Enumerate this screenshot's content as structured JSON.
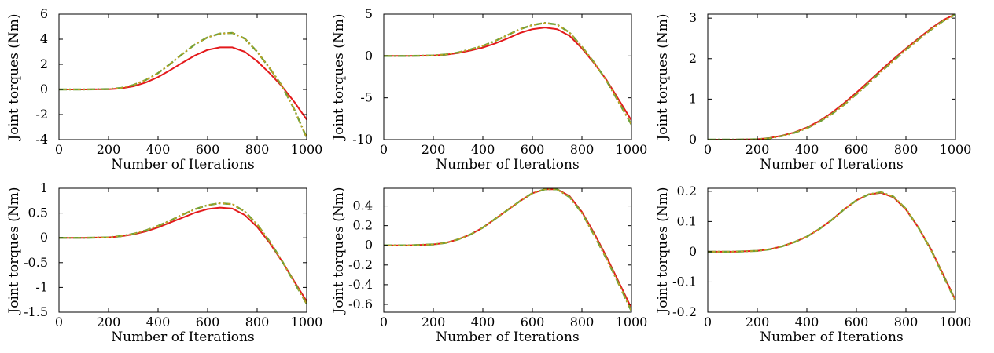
{
  "colors": {
    "series_a": "#e41a1c",
    "series_b": "#6da037",
    "series_c": "#d4a020"
  },
  "chart_data": [
    {
      "type": "line",
      "xlabel": "Number of Iterations",
      "ylabel": "Joint torques (Nm)",
      "xlim": [
        0,
        1000
      ],
      "ylim": [
        -4,
        6
      ],
      "xticks": [
        "0",
        "200",
        "400",
        "600",
        "800",
        "1000"
      ],
      "yticks": [
        "-4",
        "-2",
        "0",
        "2",
        "4",
        "6"
      ],
      "series": [
        {
          "x": [
            0,
            100,
            200,
            250,
            300,
            350,
            400,
            450,
            500,
            550,
            600,
            650,
            700,
            750,
            800,
            850,
            900,
            950,
            1000
          ],
          "values": [
            0,
            0,
            0.02,
            0.08,
            0.25,
            0.55,
            0.98,
            1.55,
            2.15,
            2.72,
            3.15,
            3.35,
            3.35,
            3.0,
            2.25,
            1.3,
            0.25,
            -1.0,
            -2.4
          ]
        },
        {
          "x": [
            0,
            100,
            200,
            250,
            300,
            350,
            400,
            450,
            500,
            550,
            600,
            650,
            700,
            750,
            800,
            850,
            900,
            950,
            1000
          ],
          "values": [
            0,
            0,
            0.03,
            0.12,
            0.35,
            0.75,
            1.3,
            2.05,
            2.85,
            3.6,
            4.15,
            4.45,
            4.5,
            4.05,
            3.0,
            1.7,
            0.3,
            -1.6,
            -3.85
          ]
        },
        {
          "x": [
            0,
            100,
            200,
            250,
            300,
            350,
            400,
            450,
            500,
            550,
            600,
            650,
            700,
            750,
            800,
            850,
            900,
            950,
            1000
          ],
          "values": [
            0,
            0,
            0.03,
            0.12,
            0.35,
            0.75,
            1.3,
            2.05,
            2.85,
            3.6,
            4.15,
            4.45,
            4.5,
            4.05,
            3.0,
            1.7,
            0.3,
            -1.6,
            -3.85
          ]
        }
      ]
    },
    {
      "type": "line",
      "xlabel": "Number of Iterations",
      "ylabel": "Joint torques (Nm)",
      "xlim": [
        0,
        1000
      ],
      "ylim": [
        -10,
        5
      ],
      "xticks": [
        "0",
        "200",
        "400",
        "600",
        "800",
        "1000"
      ],
      "yticks": [
        "-10",
        "-5",
        "0",
        "5"
      ],
      "series": [
        {
          "x": [
            0,
            100,
            200,
            250,
            300,
            350,
            400,
            450,
            500,
            550,
            600,
            650,
            700,
            750,
            800,
            850,
            900,
            950,
            1000
          ],
          "values": [
            0,
            0,
            0.05,
            0.15,
            0.35,
            0.65,
            1.0,
            1.5,
            2.1,
            2.75,
            3.2,
            3.4,
            3.2,
            2.4,
            0.9,
            -0.9,
            -2.9,
            -5.3,
            -7.7
          ]
        },
        {
          "x": [
            0,
            100,
            200,
            250,
            300,
            350,
            400,
            450,
            500,
            550,
            600,
            650,
            700,
            750,
            800,
            850,
            900,
            950,
            1000
          ],
          "values": [
            0,
            0,
            0.06,
            0.18,
            0.42,
            0.78,
            1.2,
            1.8,
            2.5,
            3.2,
            3.7,
            3.95,
            3.75,
            2.8,
            1.1,
            -0.8,
            -3.0,
            -5.6,
            -8.2
          ]
        },
        {
          "x": [
            0,
            100,
            200,
            250,
            300,
            350,
            400,
            450,
            500,
            550,
            600,
            650,
            700,
            750,
            800,
            850,
            900,
            950,
            1000
          ],
          "values": [
            0,
            0,
            0.06,
            0.18,
            0.42,
            0.78,
            1.2,
            1.8,
            2.5,
            3.2,
            3.7,
            3.95,
            3.75,
            2.8,
            1.1,
            -0.8,
            -3.0,
            -5.6,
            -8.2
          ]
        }
      ]
    },
    {
      "type": "line",
      "xlabel": "Number of Iterations",
      "ylabel": "Joint torques (Nm)",
      "xlim": [
        0,
        1000
      ],
      "ylim": [
        0,
        3.1
      ],
      "xticks": [
        "0",
        "200",
        "400",
        "600",
        "800",
        "1000"
      ],
      "yticks": [
        "0",
        "1",
        "2",
        "3"
      ],
      "series": [
        {
          "x": [
            0,
            100,
            200,
            250,
            300,
            350,
            400,
            450,
            500,
            550,
            600,
            650,
            700,
            750,
            800,
            850,
            900,
            950,
            1000
          ],
          "values": [
            0,
            0,
            0.01,
            0.04,
            0.1,
            0.18,
            0.3,
            0.46,
            0.66,
            0.9,
            1.16,
            1.44,
            1.72,
            1.99,
            2.25,
            2.5,
            2.74,
            2.95,
            3.1
          ]
        },
        {
          "x": [
            0,
            100,
            200,
            250,
            300,
            350,
            400,
            450,
            500,
            550,
            600,
            650,
            700,
            750,
            800,
            850,
            900,
            950,
            1000
          ],
          "values": [
            0,
            0,
            0.01,
            0.035,
            0.09,
            0.17,
            0.28,
            0.44,
            0.63,
            0.86,
            1.12,
            1.4,
            1.68,
            1.95,
            2.22,
            2.47,
            2.71,
            2.93,
            3.09
          ]
        },
        {
          "x": [
            0,
            100,
            200,
            250,
            300,
            350,
            400,
            450,
            500,
            550,
            600,
            650,
            700,
            750,
            800,
            850,
            900,
            950,
            1000
          ],
          "values": [
            0,
            0,
            0.01,
            0.035,
            0.09,
            0.17,
            0.28,
            0.44,
            0.63,
            0.86,
            1.12,
            1.4,
            1.68,
            1.95,
            2.22,
            2.47,
            2.71,
            2.93,
            3.09
          ]
        }
      ]
    },
    {
      "type": "line",
      "xlabel": "Number of Iterations",
      "ylabel": "Joint torques (Nm)",
      "xlim": [
        0,
        1000
      ],
      "ylim": [
        -1.5,
        1
      ],
      "xticks": [
        "0",
        "200",
        "400",
        "600",
        "800",
        "1000"
      ],
      "yticks": [
        "-1.5",
        "-1",
        "-0.5",
        "0",
        "0.5",
        "1"
      ],
      "series": [
        {
          "x": [
            0,
            100,
            200,
            250,
            300,
            350,
            400,
            450,
            500,
            550,
            600,
            650,
            700,
            750,
            800,
            850,
            900,
            950,
            1000
          ],
          "values": [
            0,
            0,
            0.01,
            0.03,
            0.07,
            0.13,
            0.21,
            0.31,
            0.41,
            0.51,
            0.58,
            0.61,
            0.59,
            0.46,
            0.22,
            -0.1,
            -0.47,
            -0.88,
            -1.28
          ]
        },
        {
          "x": [
            0,
            100,
            200,
            250,
            300,
            350,
            400,
            450,
            500,
            550,
            600,
            650,
            700,
            750,
            800,
            850,
            900,
            950,
            1000
          ],
          "values": [
            0,
            0,
            0.01,
            0.035,
            0.08,
            0.15,
            0.24,
            0.35,
            0.47,
            0.58,
            0.66,
            0.7,
            0.68,
            0.53,
            0.27,
            -0.07,
            -0.46,
            -0.9,
            -1.33
          ]
        },
        {
          "x": [
            0,
            100,
            200,
            250,
            300,
            350,
            400,
            450,
            500,
            550,
            600,
            650,
            700,
            750,
            800,
            850,
            900,
            950,
            1000
          ],
          "values": [
            0,
            0,
            0.01,
            0.035,
            0.08,
            0.15,
            0.24,
            0.35,
            0.47,
            0.58,
            0.66,
            0.7,
            0.68,
            0.53,
            0.27,
            -0.07,
            -0.46,
            -0.9,
            -1.33
          ]
        }
      ]
    },
    {
      "type": "line",
      "xlabel": "Number of Iterations",
      "ylabel": "Joint torques (Nm)",
      "xlim": [
        0,
        1000
      ],
      "ylim": [
        -0.68,
        0.58
      ],
      "xticks": [
        "0",
        "200",
        "400",
        "600",
        "800",
        "1000"
      ],
      "yticks": [
        "-0.6",
        "-0.4",
        "-0.2",
        "0",
        "0.2",
        "0.4"
      ],
      "series": [
        {
          "x": [
            0,
            100,
            200,
            250,
            300,
            350,
            400,
            450,
            500,
            550,
            600,
            650,
            700,
            750,
            800,
            850,
            900,
            950,
            1000
          ],
          "values": [
            0,
            0,
            0.01,
            0.025,
            0.06,
            0.11,
            0.18,
            0.27,
            0.36,
            0.45,
            0.53,
            0.57,
            0.57,
            0.5,
            0.34,
            0.12,
            -0.12,
            -0.38,
            -0.64
          ]
        },
        {
          "x": [
            0,
            100,
            200,
            250,
            300,
            350,
            400,
            450,
            500,
            550,
            600,
            650,
            700,
            750,
            800,
            850,
            900,
            950,
            1000
          ],
          "values": [
            0,
            0,
            0.01,
            0.025,
            0.06,
            0.11,
            0.18,
            0.27,
            0.36,
            0.45,
            0.53,
            0.57,
            0.57,
            0.49,
            0.33,
            0.1,
            -0.14,
            -0.4,
            -0.67
          ]
        },
        {
          "x": [
            0,
            100,
            200,
            250,
            300,
            350,
            400,
            450,
            500,
            550,
            600,
            650,
            700,
            750,
            800,
            850,
            900,
            950,
            1000
          ],
          "values": [
            0,
            0,
            0.01,
            0.025,
            0.06,
            0.11,
            0.18,
            0.27,
            0.36,
            0.45,
            0.53,
            0.57,
            0.57,
            0.49,
            0.33,
            0.1,
            -0.14,
            -0.4,
            -0.67
          ]
        }
      ]
    },
    {
      "type": "line",
      "xlabel": "Number of Iterations",
      "ylabel": "Joint torques (Nm)",
      "xlim": [
        0,
        1000
      ],
      "ylim": [
        -0.2,
        0.21
      ],
      "xticks": [
        "0",
        "200",
        "400",
        "600",
        "800",
        "1000"
      ],
      "yticks": [
        "-0.2",
        "-0.1",
        "0",
        "0.1",
        "0.2"
      ],
      "series": [
        {
          "x": [
            0,
            100,
            200,
            250,
            300,
            350,
            400,
            450,
            500,
            550,
            600,
            650,
            700,
            750,
            800,
            850,
            900,
            950,
            1000
          ],
          "values": [
            0,
            0,
            0.003,
            0.008,
            0.018,
            0.032,
            0.05,
            0.075,
            0.105,
            0.14,
            0.17,
            0.19,
            0.195,
            0.18,
            0.14,
            0.08,
            0.01,
            -0.075,
            -0.16
          ]
        },
        {
          "x": [
            0,
            100,
            200,
            250,
            300,
            350,
            400,
            450,
            500,
            550,
            600,
            650,
            700,
            750,
            800,
            850,
            900,
            950,
            1000
          ],
          "values": [
            0,
            0,
            0.003,
            0.008,
            0.018,
            0.032,
            0.05,
            0.075,
            0.105,
            0.14,
            0.17,
            0.19,
            0.197,
            0.182,
            0.142,
            0.08,
            0.008,
            -0.078,
            -0.163
          ]
        },
        {
          "x": [
            0,
            100,
            200,
            250,
            300,
            350,
            400,
            450,
            500,
            550,
            600,
            650,
            700,
            750,
            800,
            850,
            900,
            950,
            1000
          ],
          "values": [
            0,
            0,
            0.003,
            0.008,
            0.018,
            0.032,
            0.05,
            0.075,
            0.105,
            0.14,
            0.17,
            0.19,
            0.197,
            0.182,
            0.142,
            0.08,
            0.008,
            -0.078,
            -0.163
          ]
        }
      ]
    }
  ]
}
